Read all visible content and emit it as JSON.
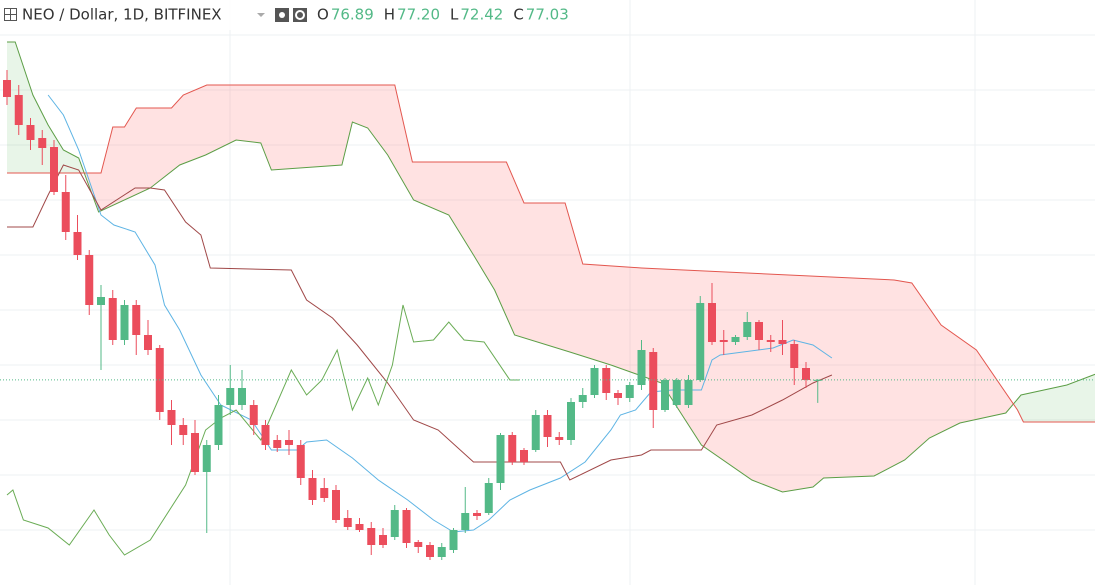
{
  "chart_data": {
    "type": "candlestick",
    "title": "NEO / Dollar, 1D, BITFINEX",
    "readout": [
      {
        "key": "O",
        "label": "76.89"
      },
      {
        "key": "H",
        "label": "77.20"
      },
      {
        "key": "L",
        "label": "72.42"
      },
      {
        "key": "C",
        "label": "77.03"
      }
    ],
    "up_color": "#53b987",
    "down_color": "#eb4d5c",
    "ylim": [
      36,
      153
    ],
    "open": [
      137,
      134,
      128,
      125.4,
      123.6,
      114.6,
      106.6,
      102,
      92,
      93.4,
      85,
      92,
      86,
      83.4,
      71,
      68,
      66.4,
      58.6,
      64,
      72,
      72,
      72,
      68,
      65,
      65,
      64,
      57.4,
      55.4,
      55,
      49.4,
      48.2,
      47.4,
      46,
      45.6,
      51,
      44.6,
      44,
      41.6,
      43,
      47,
      50.4,
      50.4,
      56.4,
      66,
      63,
      63,
      70,
      65.6,
      65,
      72.6,
      74,
      79.4,
      74.4,
      73.4,
      76,
      82.6,
      71,
      72,
      72,
      77,
      92.4,
      85,
      84.6,
      85.6,
      88.6,
      85,
      85,
      84.2,
      79.4,
      76.89
    ],
    "high": [
      139,
      136,
      129.4,
      127,
      125,
      118,
      110,
      103,
      96,
      95,
      93,
      93,
      89,
      84,
      73,
      69.4,
      69,
      65,
      74,
      80,
      79,
      73,
      69,
      66,
      67,
      65,
      59,
      57.4,
      56,
      51,
      49.4,
      48.6,
      47.4,
      52,
      51.4,
      45,
      44.6,
      44.4,
      47.4,
      55.6,
      51,
      57.4,
      66.4,
      66.6,
      63.4,
      71,
      71,
      66.6,
      73.4,
      75.4,
      80,
      80,
      75,
      76.6,
      85,
      83.4,
      77.4,
      77.4,
      78,
      93.8,
      96.4,
      87,
      86,
      90.6,
      89,
      86,
      89,
      85,
      80.6,
      77.2
    ],
    "low": [
      132,
      126,
      123,
      120,
      114,
      105,
      101,
      90,
      79,
      84,
      84,
      82,
      82,
      69,
      64,
      64,
      58,
      46.4,
      63,
      70,
      71,
      66,
      63,
      62.6,
      62,
      56,
      52,
      52.6,
      48.4,
      47,
      46.6,
      42,
      43.4,
      45,
      43.4,
      42.4,
      41,
      41,
      42.4,
      46.4,
      49,
      50,
      55,
      60,
      60,
      62.6,
      63.6,
      64,
      64,
      71.4,
      73.4,
      73,
      72,
      72.6,
      75,
      67.4,
      70.6,
      71.4,
      71.4,
      76.6,
      84,
      82,
      84,
      85,
      83,
      82.6,
      82,
      76,
      75.4,
      72.42
    ],
    "close": [
      133.6,
      128,
      125,
      123.4,
      114.6,
      106.6,
      102,
      92,
      93.6,
      85,
      92,
      86,
      83,
      70.6,
      68,
      66,
      58.6,
      64,
      72,
      75.4,
      75.4,
      68,
      64,
      63.4,
      64,
      57.4,
      53,
      53.4,
      49,
      47.6,
      47,
      44,
      44,
      51,
      44.4,
      43.6,
      41.6,
      43.6,
      47,
      50.4,
      49.8,
      56.4,
      66,
      60.6,
      60.6,
      70,
      65.6,
      65,
      72.6,
      74,
      79.4,
      74.4,
      73.4,
      76,
      83,
      71,
      77,
      77,
      77,
      92.4,
      84.6,
      84.6,
      85.6,
      88.6,
      85,
      84.6,
      84.2,
      79.4,
      77,
      77.03
    ],
    "lines": [
      {
        "color": "#5eb4e4",
        "x": [
          3.5,
          4.8,
          6.1,
          8,
          9.1,
          10.9,
          12.6,
          13.4,
          14.7,
          16.5,
          18.2,
          20.8,
          22.5,
          24.7,
          25.5,
          27.2,
          29.4,
          31.6,
          34.1,
          36.3,
          38,
          39.7,
          41,
          42.8,
          44.5,
          47.1,
          49.2,
          51.4,
          52.2,
          53.5,
          54.8,
          56.6,
          59.1,
          60,
          60.7,
          65.2,
          66.9,
          68.6,
          70.2
        ],
        "values": [
          134,
          130,
          123,
          110,
          108,
          106.6,
          100,
          92,
          87,
          78,
          72,
          69,
          63,
          63,
          64.6,
          65,
          61.4,
          57,
          53,
          49,
          46.6,
          47,
          49,
          53,
          55,
          57.4,
          60.6,
          67,
          70,
          71,
          74.6,
          75,
          75,
          81,
          82,
          83.4,
          85,
          84,
          81.4
        ]
      },
      {
        "color": "#a04848",
        "x": [
          0,
          2.2,
          3.5,
          4.8,
          6.1,
          8,
          10.9,
          12.2,
          13.4,
          15.2,
          16.5,
          17.3,
          24.2,
          25.5,
          27.7,
          29.8,
          32.4,
          34.6,
          36.7,
          39.7,
          47.1,
          47.9,
          51.4,
          54,
          54.8,
          59.1,
          60.4,
          63.4,
          66,
          68.6,
          70.2
        ],
        "values": [
          107.6,
          107.6,
          114,
          120,
          119,
          111,
          115.4,
          115.4,
          115,
          108.6,
          106,
          99.4,
          99,
          93,
          89.4,
          84,
          76.4,
          69,
          67,
          60.6,
          60.6,
          57,
          61,
          62,
          63,
          63,
          68,
          70,
          73,
          76.4,
          78
        ]
      },
      {
        "color": "#6aac55",
        "x": [
          0,
          0.5,
          1.4,
          3.5,
          5.3,
          7.4,
          8.7,
          10,
          12.2,
          15.2,
          16.9,
          18.2,
          19.5,
          21.6,
          22.9,
          24.2,
          25.5,
          26.8,
          28.1,
          29.4,
          30.7,
          31.6,
          32.8,
          33.7,
          34.6,
          36.3,
          37.6,
          38.9,
          40.6,
          42.8,
          43.6
        ],
        "values": [
          54,
          55,
          49,
          47.4,
          44,
          51,
          46,
          42,
          45,
          56,
          67,
          69.4,
          71,
          65,
          72,
          79,
          74,
          77,
          83,
          71,
          77.4,
          72,
          80,
          92,
          84.6,
          85,
          88.6,
          85,
          84.6,
          77,
          77
        ]
      }
    ],
    "cloud": {
      "a": {
        "color": "#5c9e46",
        "fill": "rgba(76,175,80,0.13)",
        "x": [
          0,
          0.7,
          2.2,
          3.5,
          4.8,
          6.1,
          7.8,
          12.2,
          14.7,
          16.9,
          19.5,
          21.6,
          22.5,
          28.5,
          29.4,
          30.7,
          32.4,
          34.6,
          37.6,
          39.7,
          41.5,
          43.2,
          47.9,
          51.4,
          55.7,
          59.1,
          63.4,
          66,
          68.6,
          69.5,
          73.8,
          76.4,
          78.5,
          81.1,
          85,
          86.3,
          90.2,
          94
        ],
        "values": [
          144.6,
          144.6,
          134,
          128,
          123,
          121.4,
          110.6,
          115.4,
          120,
          122,
          125,
          124.4,
          119,
          120,
          128.6,
          127.4,
          122,
          113,
          110,
          102,
          95,
          86,
          82.6,
          80,
          76.4,
          64,
          57,
          54.6,
          55.6,
          57.4,
          57.8,
          61,
          65.4,
          68.4,
          70.4,
          74,
          76,
          79.4
        ]
      },
      "b": {
        "color": "#e3574f",
        "fill": "rgba(255,82,82,0.17)",
        "x": [
          0,
          8,
          9,
          10,
          11,
          14,
          15,
          17,
          33,
          34.5,
          42.5,
          44,
          47.5,
          49,
          54,
          75.5,
          77,
          79.5,
          82.5,
          86,
          86.5,
          94
        ],
        "values": [
          118.4,
          118.4,
          127.6,
          127.6,
          131.4,
          131.4,
          134,
          136,
          136,
          120.6,
          120.6,
          112.4,
          112.4,
          100.2,
          99.4,
          97,
          96.4,
          88,
          83,
          71,
          68.6,
          68.6
        ]
      }
    }
  }
}
